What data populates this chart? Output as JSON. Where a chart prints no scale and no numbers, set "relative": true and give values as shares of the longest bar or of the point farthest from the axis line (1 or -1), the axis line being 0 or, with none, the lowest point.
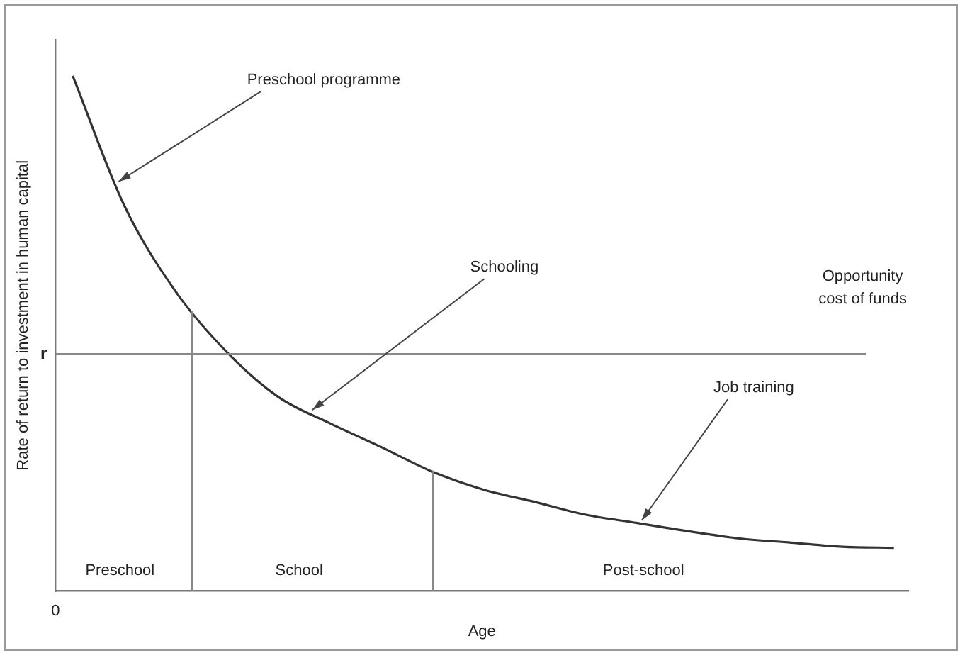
{
  "chart_data": {
    "type": "line",
    "relative": true,
    "xlabel": "Age",
    "ylabel": "Rate of return to investment in human capital",
    "categories": [
      null,
      null,
      null,
      null,
      null,
      null,
      null,
      null,
      null,
      null,
      null,
      null,
      null,
      null,
      null,
      null,
      null
    ],
    "series": [
      {
        "color": "#333333",
        "values": [
          1.0,
          0.749,
          0.582,
          0.464,
          0.377,
          0.326,
          0.28,
          0.232,
          0.197,
          0.173,
          0.148,
          0.132,
          0.116,
          0.102,
          0.094,
          0.086,
          0.084
        ]
      }
    ],
    "legend": false,
    "marker": "none",
    "line_style": "solid",
    "ref_lines": [
      {
        "axis": "y",
        "value": 0.46,
        "label": "r",
        "color": "#888888"
      }
    ],
    "annotations": [
      "Preschool programme",
      "Schooling",
      "Opportunity cost of funds",
      "Job training",
      "Preschool",
      "School",
      "Post-school",
      "0"
    ]
  }
}
